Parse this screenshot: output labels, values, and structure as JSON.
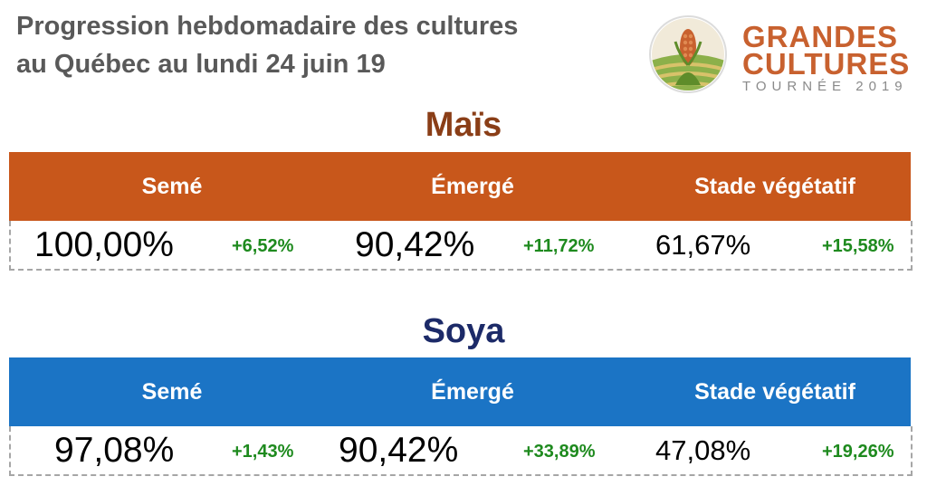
{
  "header": {
    "title_line1": "Progression hebdomadaire des cultures",
    "title_line2": "au Québec au lundi 24 juin 19"
  },
  "logo": {
    "line1": "GRANDES",
    "line2": "CULTURES",
    "line3": "TOURNÉE 2019",
    "icon": "corn-field-logo",
    "colors": {
      "text": "#c8612f",
      "subtext": "#8a8a8a",
      "field": "#7fa83a",
      "corn": "#c8612f"
    }
  },
  "mais": {
    "title": "Maïs",
    "color": "#c8571b",
    "headers": [
      "Semé",
      "Émergé",
      "Stade végétatif"
    ],
    "values": [
      "100,00%",
      "90,42%",
      "61,67%"
    ],
    "changes": [
      "+6,52%",
      "+11,72%",
      "+15,58%"
    ]
  },
  "soya": {
    "title": "Soya",
    "color": "#1b74c5",
    "headers": [
      "Semé",
      "Émergé",
      "Stade végétatif"
    ],
    "values": [
      "97,08%",
      "90,42%",
      "47,08%"
    ],
    "changes": [
      "+1,43%",
      "+33,89%",
      "+19,26%"
    ]
  }
}
